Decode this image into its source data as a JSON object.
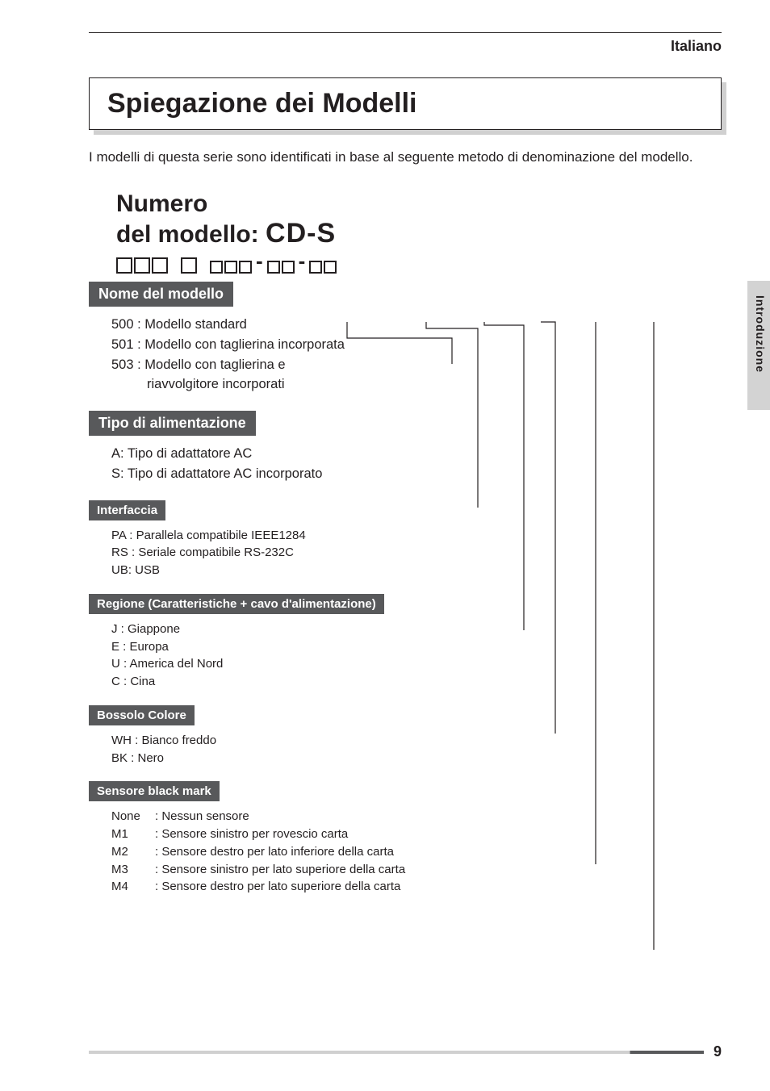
{
  "header": {
    "language": "Italiano"
  },
  "title": "Spiegazione dei Modelli",
  "intro": "I modelli di questa serie sono identificati in base al seguente metodo di denominazione del modello.",
  "model": {
    "label_line1": "Numero",
    "label_line2": "del modello:",
    "prefix": "CD-S",
    "groups": [
      {
        "count": 3,
        "size": "lg"
      },
      {
        "count": 1,
        "size": "lg",
        "gap_before": true
      },
      {
        "count": 3,
        "size": "sm",
        "gap_before": true
      },
      {
        "dash": true
      },
      {
        "count": 2,
        "size": "sm"
      },
      {
        "dash": true
      },
      {
        "count": 2,
        "size": "sm"
      }
    ]
  },
  "sections": [
    {
      "title": "Nome del modello",
      "title_size": "lg",
      "body_size": "lg",
      "lines": [
        "500 : Modello standard",
        "501 : Modello con taglierina incorporata",
        "503 : Modello con taglierina e",
        "         riavvolgitore incorporati"
      ],
      "indent_last": true
    },
    {
      "title": "Tipo di alimentazione",
      "title_size": "lg",
      "body_size": "lg",
      "lines": [
        "A: Tipo di adattatore AC",
        "S: Tipo di adattatore AC incorporato"
      ]
    },
    {
      "title": "Interfaccia",
      "title_size": "sm",
      "body_size": "sm",
      "lines": [
        "PA : Parallela compatibile IEEE1284",
        "RS : Seriale compatibile RS-232C",
        "UB: USB"
      ]
    },
    {
      "title": "Regione (Caratteristiche + cavo d'alimentazione)",
      "title_size": "sm",
      "body_size": "sm",
      "lines": [
        "J  : Giappone",
        "E : Europa",
        "U : America del Nord",
        "C : Cina"
      ]
    },
    {
      "title": "Bossolo Colore",
      "title_size": "sm",
      "body_size": "sm",
      "lines": [
        "WH : Bianco freddo",
        "BK  : Nero"
      ]
    },
    {
      "title": "Sensore black mark",
      "title_size": "sm",
      "body_size": "sm",
      "rows": [
        {
          "k": "None",
          "v": ": Nessun sensore"
        },
        {
          "k": "M1",
          "v": ": Sensore sinistro per rovescio carta"
        },
        {
          "k": "M2",
          "v": ": Sensore destro per lato inferiore della carta"
        },
        {
          "k": "M3",
          "v": ": Sensore sinistro per lato superiore della carta"
        },
        {
          "k": "M4",
          "v": ": Sensore destro per lato superiore della carta"
        }
      ]
    }
  ],
  "side_tab": "Introduzione",
  "page_number": "9",
  "connectors": {
    "stroke": "#231f20",
    "stroke_width": 1.2,
    "paths": [
      "M 320 50 L 320 70 L 450 70 L 450 102",
      "M 418 50 L 418 58 L 482 58 L 482 280",
      "M 490 50 L 490 54 L 539 54 L 539 432",
      "M 560 50 L 560 50 L 578 50 L 578 560",
      "M 628 50 L 628 50 L 628 722",
      "M 700 50 L 700 50 L 700 828"
    ]
  },
  "colors": {
    "text": "#231f20",
    "section_bg": "#58595b",
    "section_fg": "#ffffff",
    "side_tab_bg": "#d3d3d3",
    "shadow": "#d0d0d0"
  }
}
